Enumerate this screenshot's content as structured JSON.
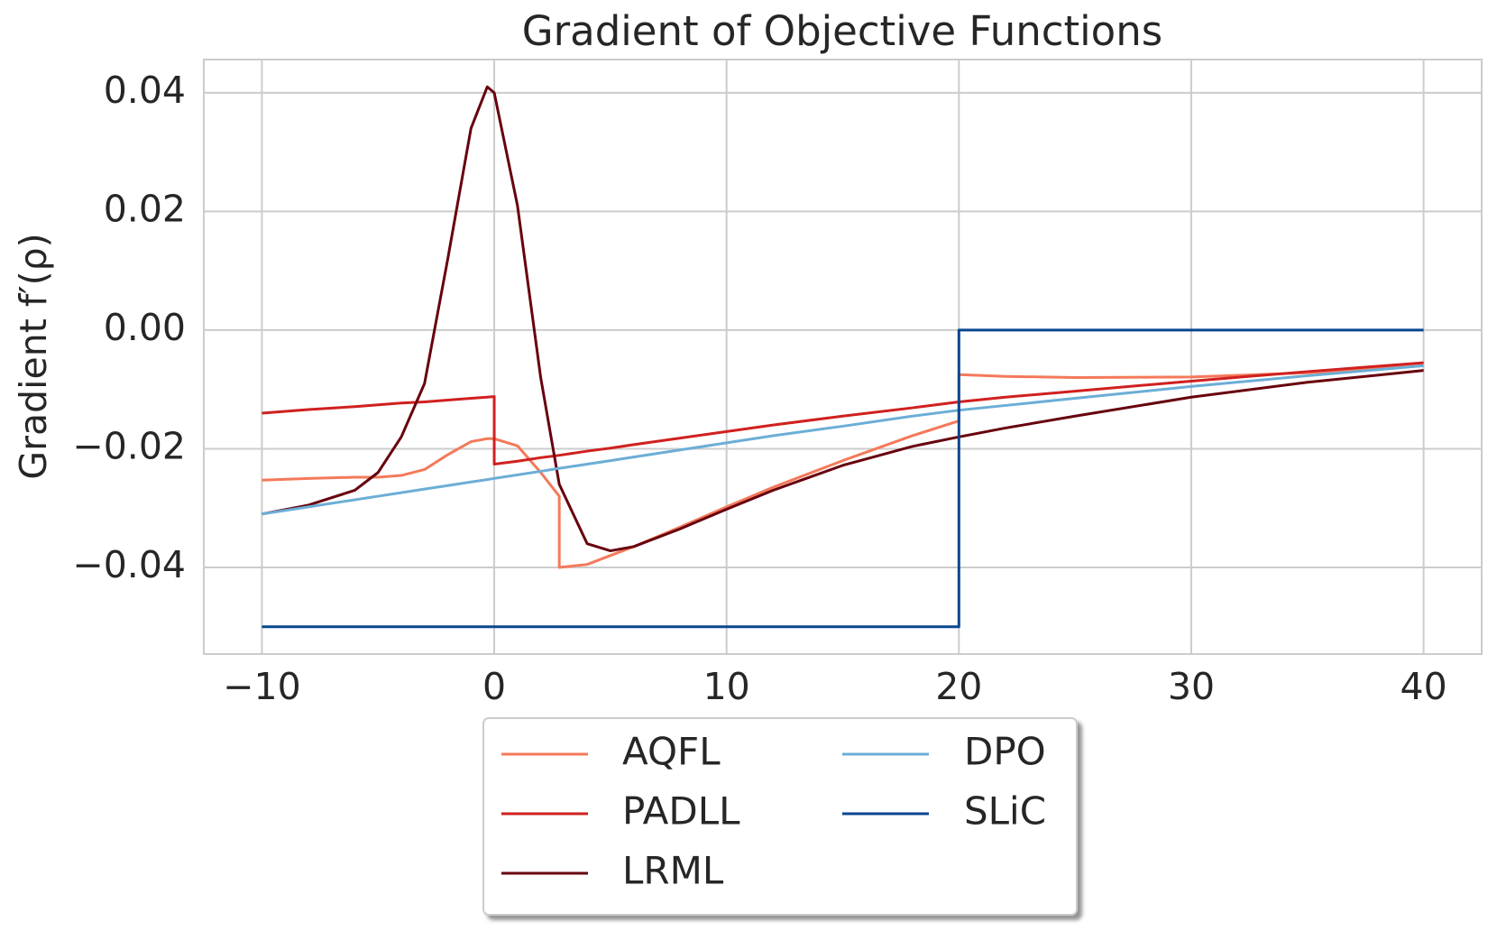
{
  "chart_data": {
    "type": "line",
    "title": "Gradient of Objective Functions",
    "y_label": "Gradient f′(ρ)",
    "x": [
      -10,
      -8,
      -6,
      -5,
      -4,
      -3,
      -2,
      -1,
      -0.3,
      0,
      0,
      1,
      2,
      2.8,
      2.8,
      4,
      5,
      6,
      8,
      10,
      12,
      15,
      18,
      20,
      20,
      22,
      25,
      30,
      35,
      40
    ],
    "series": [
      {
        "name": "AQFL",
        "color": "#f4795a",
        "values": [
          -0.0253,
          -0.025,
          -0.0248,
          -0.0248,
          -0.0245,
          -0.0235,
          -0.021,
          -0.0188,
          -0.0183,
          -0.0183,
          -0.0183,
          -0.0195,
          -0.024,
          -0.028,
          -0.04,
          -0.0395,
          -0.038,
          -0.0365,
          -0.0332,
          -0.0298,
          -0.0265,
          -0.022,
          -0.0178,
          -0.0153,
          -0.0075,
          -0.0078,
          -0.008,
          -0.0079,
          -0.0072,
          -0.006
        ]
      },
      {
        "name": "PADLL",
        "color": "#d0201f",
        "values": [
          -0.014,
          -0.0134,
          -0.0129,
          -0.0126,
          -0.0123,
          -0.0121,
          -0.0118,
          -0.0115,
          -0.0113,
          -0.0112,
          -0.0226,
          -0.0221,
          -0.0215,
          -0.0211,
          -0.0211,
          -0.0204,
          -0.0199,
          -0.0193,
          -0.0182,
          -0.0171,
          -0.016,
          -0.0145,
          -0.0131,
          -0.0121,
          -0.0121,
          -0.0113,
          -0.0103,
          -0.0086,
          -0.007,
          -0.0055
        ]
      },
      {
        "name": "LRML",
        "color": "#67000d",
        "values": [
          -0.031,
          -0.0295,
          -0.027,
          -0.024,
          -0.018,
          -0.009,
          0.012,
          0.034,
          0.041,
          0.04,
          0.04,
          0.021,
          -0.008,
          -0.026,
          -0.026,
          -0.036,
          -0.0372,
          -0.0365,
          -0.0335,
          -0.0302,
          -0.027,
          -0.0228,
          -0.0196,
          -0.018,
          -0.018,
          -0.0165,
          -0.0145,
          -0.0113,
          -0.0088,
          -0.0068
        ]
      },
      {
        "name": "DPO",
        "color": "#6baed6",
        "values": [
          -0.031,
          -0.0298,
          -0.0286,
          -0.028,
          -0.0274,
          -0.0268,
          -0.0262,
          -0.0256,
          -0.0252,
          -0.025,
          -0.025,
          -0.0244,
          -0.0238,
          -0.0233,
          -0.0233,
          -0.0226,
          -0.022,
          -0.0214,
          -0.0202,
          -0.019,
          -0.0178,
          -0.0162,
          -0.0145,
          -0.0135,
          -0.0135,
          -0.0127,
          -0.0115,
          -0.0095,
          -0.0077,
          -0.006
        ]
      },
      {
        "name": "SLiC",
        "color": "#08468f",
        "values": [
          -0.05,
          -0.05,
          -0.05,
          -0.05,
          -0.05,
          -0.05,
          -0.05,
          -0.05,
          -0.05,
          -0.05,
          -0.05,
          -0.05,
          -0.05,
          -0.05,
          -0.05,
          -0.05,
          -0.05,
          -0.05,
          -0.05,
          -0.05,
          -0.05,
          -0.05,
          -0.05,
          -0.05,
          0,
          0,
          0,
          0,
          0,
          0
        ]
      }
    ],
    "xlim": [
      -12.5,
      42.5
    ],
    "ylim": [
      -0.0546,
      0.0456
    ],
    "xticks": [
      {
        "value": -10,
        "label": "−10"
      },
      0,
      10,
      20,
      30,
      40
    ],
    "yticks": [
      {
        "value": -0.04,
        "label": "−0.04"
      },
      {
        "value": -0.02,
        "label": "−0.02"
      },
      {
        "value": 0,
        "label": "0.00"
      },
      0.02,
      0.04
    ],
    "grid": true,
    "legend": "below"
  }
}
